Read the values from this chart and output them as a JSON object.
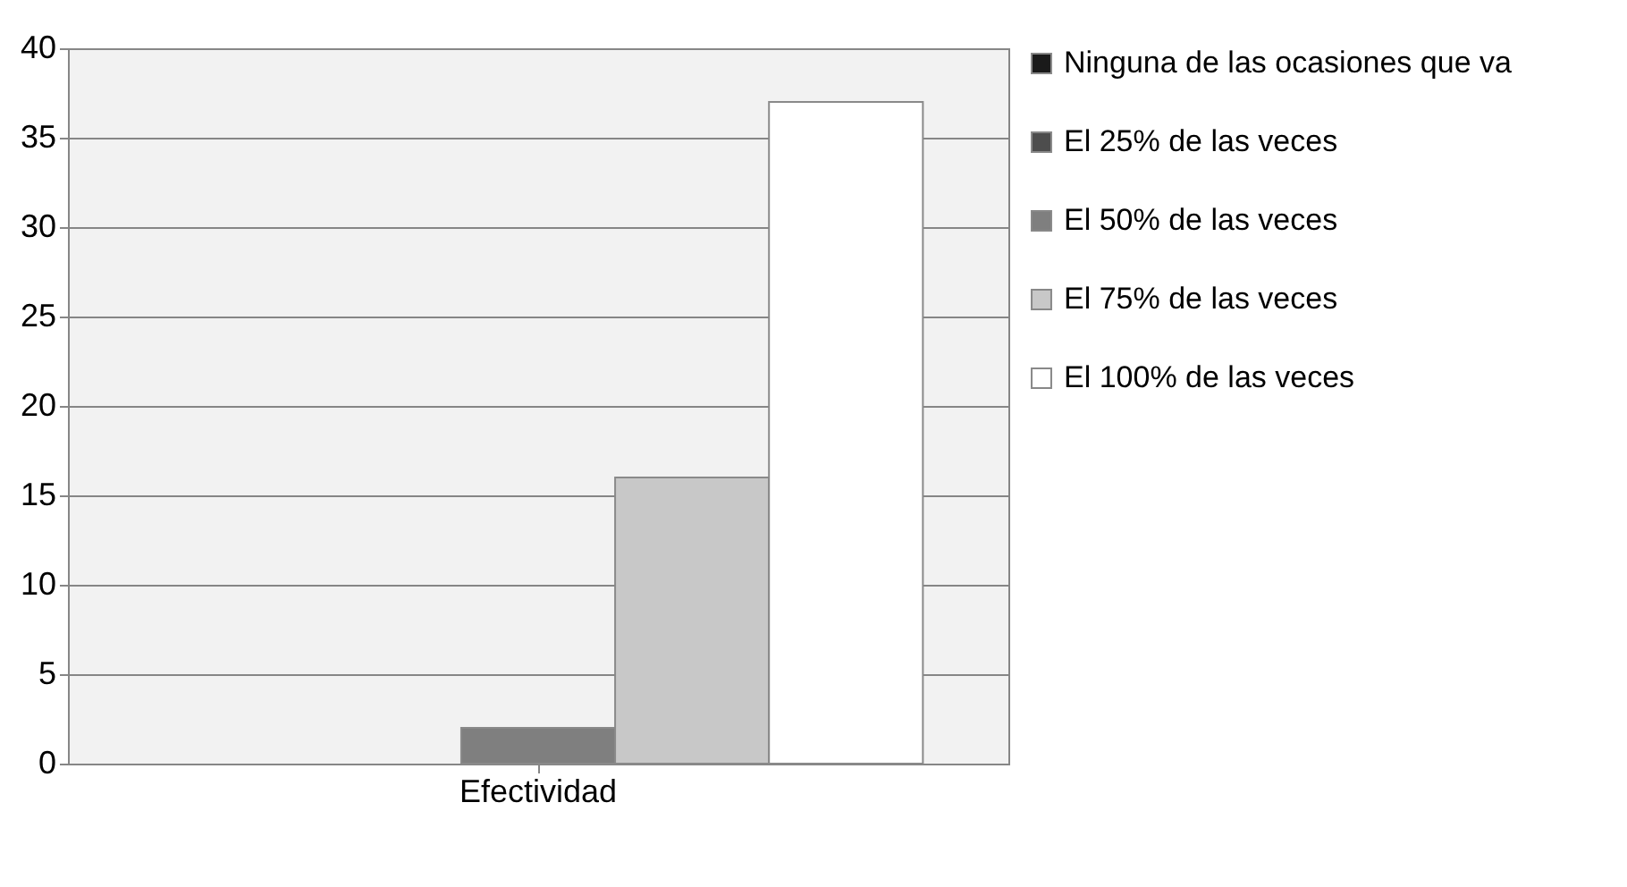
{
  "chart_data": {
    "type": "bar",
    "categories": [
      "Efectividad"
    ],
    "series": [
      {
        "name": "Ninguna de las ocasiones que va",
        "color": "#1a1a1a",
        "values": [
          0
        ]
      },
      {
        "name": "El 25% de las veces",
        "color": "#4d4d4d",
        "values": [
          0
        ]
      },
      {
        "name": "El 50% de las veces",
        "color": "#7f7f7f",
        "values": [
          2
        ]
      },
      {
        "name": "El 75% de las veces",
        "color": "#c8c8c8",
        "values": [
          16
        ]
      },
      {
        "name": "El 100% de las veces",
        "color": "#ffffff",
        "values": [
          37
        ]
      }
    ],
    "ylim": [
      0,
      40
    ],
    "yticks": [
      0,
      5,
      10,
      15,
      20,
      25,
      30,
      35,
      40
    ],
    "grid": "y",
    "legend": "right"
  }
}
